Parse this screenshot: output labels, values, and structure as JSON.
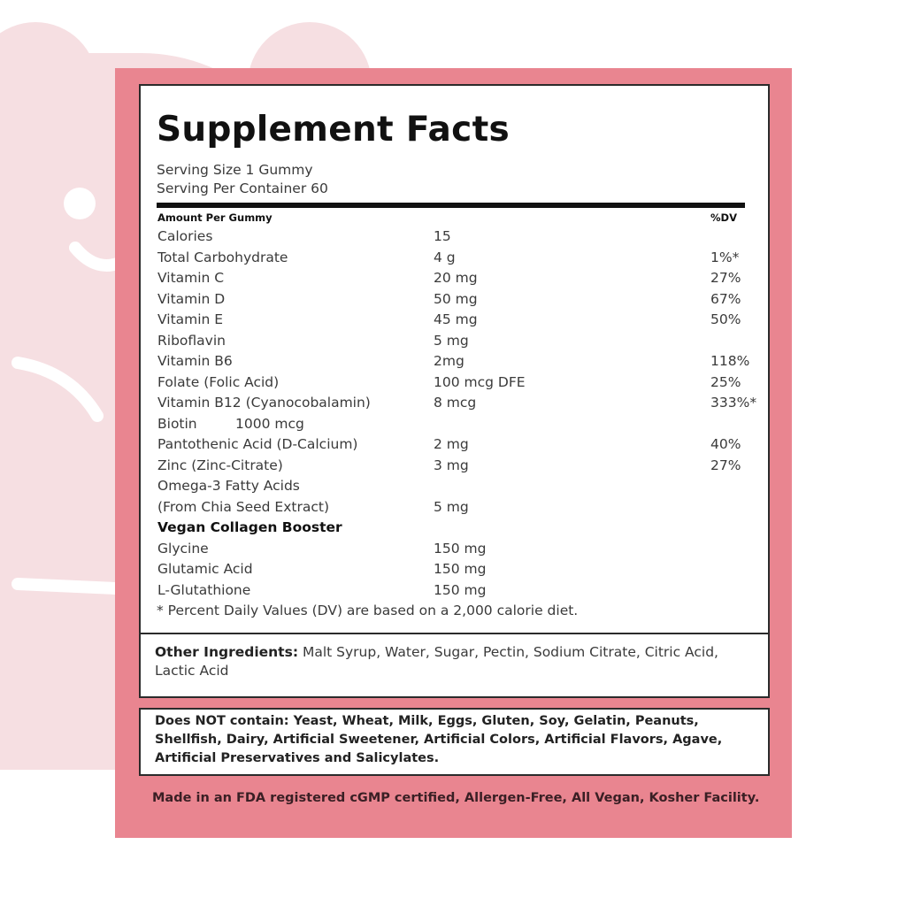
{
  "header": {
    "title": "Supplement Facts",
    "serving_size": "Serving Size 1 Gummy",
    "servings_per_container": "Serving Per Container 60"
  },
  "table": {
    "amount_header": "Amount Per Gummy",
    "dv_header": "%DV",
    "rows": [
      {
        "name": "Calories",
        "amount": "15"
      },
      {
        "name": "Total Carbohydrate",
        "amount": "4 g",
        "dv": "1%*"
      },
      {
        "name": "Vitamin C",
        "amount": "20 mg",
        "dv": "27%"
      },
      {
        "name": "Vitamin D",
        "amount": "50 mg",
        "dv": "67%"
      },
      {
        "name": "Vitamin E",
        "amount": "45 mg",
        "dv": "50%"
      },
      {
        "name": "Riboflavin",
        "amount": "5 mg"
      },
      {
        "name": "Vitamin B6",
        "amount": "2mg",
        "dv": "118%"
      },
      {
        "name": "Folate (Folic Acid)",
        "amount": "100 mcg DFE",
        "dv": "25%"
      },
      {
        "name": "Vitamin B12 (Cyanocobalamin)",
        "amount": "8 mcg",
        "dv": "333%*"
      },
      {
        "name": "Biotin",
        "amount_inline": "1000 mcg"
      },
      {
        "name": "Pantothenic Acid (D-Calcium)",
        "amount": "2 mg",
        "dv": "40%"
      },
      {
        "name": "Zinc (Zinc-Citrate)",
        "amount": "3 mg",
        "dv": "27%"
      },
      {
        "name": "Omega-3 Fatty Acids"
      },
      {
        "name": "(From Chia Seed Extract)",
        "amount": "5 mg"
      },
      {
        "section": "Vegan Collagen Booster"
      },
      {
        "name": "Glycine",
        "amount": "150 mg"
      },
      {
        "name": "Glutamic Acid",
        "amount": "150 mg"
      },
      {
        "name": "L-Glutathione",
        "amount": "150 mg"
      }
    ],
    "footnote": "* Percent Daily Values (DV) are based on a 2,000 calorie diet."
  },
  "other_ingredients": {
    "label": "Other Ingredients:",
    "text": "Malt Syrup, Water, Sugar, Pectin, Sodium Citrate, Citric Acid, Lactic Acid"
  },
  "allergens": {
    "label": "Does NOT contain:",
    "text": "Yeast, Wheat, Milk, Eggs, Gluten, Soy, Gelatin, Peanuts, Shellfish, Dairy, Artificial Sweetener, Artificial Colors, Artificial Flavors, Agave, Artificial Preservatives and Salicylates."
  },
  "made_in": "Made in an FDA registered cGMP certified, Allergen-Free, All  Vegan, Kosher Facility."
}
